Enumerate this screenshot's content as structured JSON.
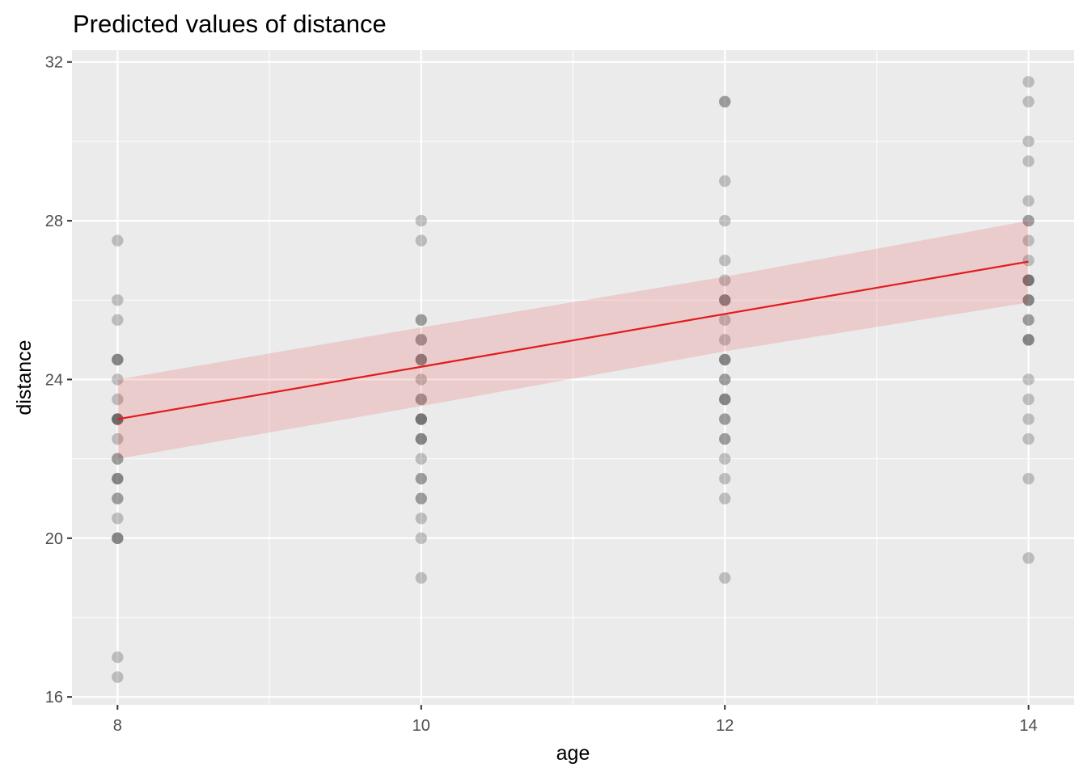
{
  "chart_data": {
    "type": "scatter",
    "title": "Predicted values of distance",
    "xlabel": "age",
    "ylabel": "distance",
    "xlim": [
      7.7,
      14.3
    ],
    "ylim": [
      15.8,
      32.3
    ],
    "x_ticks": [
      8,
      10,
      12,
      14
    ],
    "y_ticks": [
      16,
      20,
      24,
      28,
      32
    ],
    "grid": true,
    "legend": "none",
    "colors": {
      "panel": "#ebebeb",
      "grid": "#ffffff",
      "points": "#595959",
      "line": "#e41a1c",
      "ribbon": "#e41a1c",
      "tick_text": "#4d4d4d",
      "tick_mark": "#333333"
    },
    "series": [
      {
        "type": "points",
        "x": [
          8,
          8,
          8,
          8,
          8,
          8,
          8,
          8,
          8,
          8,
          8,
          8,
          8,
          8,
          8,
          8,
          8,
          8,
          8,
          8,
          8,
          8,
          8,
          8,
          8,
          8,
          8,
          10,
          10,
          10,
          10,
          10,
          10,
          10,
          10,
          10,
          10,
          10,
          10,
          10,
          10,
          10,
          10,
          10,
          10,
          10,
          10,
          10,
          10,
          10,
          10,
          10,
          10,
          10,
          12,
          12,
          12,
          12,
          12,
          12,
          12,
          12,
          12,
          12,
          12,
          12,
          12,
          12,
          12,
          12,
          12,
          12,
          12,
          12,
          12,
          12,
          12,
          12,
          12,
          12,
          12,
          14,
          14,
          14,
          14,
          14,
          14,
          14,
          14,
          14,
          14,
          14,
          14,
          14,
          14,
          14,
          14,
          14,
          14,
          14,
          14,
          14,
          14,
          14,
          14,
          14,
          14,
          14
        ],
        "y": [
          27.5,
          26,
          25.5,
          24.5,
          24.5,
          24,
          23.5,
          23,
          23,
          23,
          23,
          22.5,
          22,
          22,
          21.5,
          21.5,
          21.5,
          21,
          21,
          20.5,
          20,
          20,
          20,
          17,
          16.5,
          24.5,
          23,
          28,
          27.5,
          25.5,
          25.5,
          25,
          25,
          24.5,
          24.5,
          24.5,
          24,
          23.5,
          23.5,
          23,
          23,
          23,
          22.5,
          22.5,
          22.5,
          22,
          21.5,
          21.5,
          21,
          21,
          20.5,
          20,
          19,
          23,
          31,
          31,
          29,
          28,
          27,
          26.5,
          26,
          26,
          25.5,
          25,
          24.5,
          24.5,
          24.5,
          24,
          24,
          23.5,
          23.5,
          23.5,
          23,
          23,
          22.5,
          22.5,
          22,
          21.5,
          21,
          19,
          26,
          31.5,
          31,
          30,
          29.5,
          28.5,
          28,
          28,
          27.5,
          27,
          26.5,
          26.5,
          26.5,
          26,
          26,
          26,
          25.5,
          25.5,
          25,
          25,
          25,
          24,
          23.5,
          23,
          22.5,
          21.5,
          19.5,
          26.5
        ]
      },
      {
        "type": "line",
        "x": [
          8,
          10,
          12,
          14
        ],
        "y": [
          23.0,
          24.32,
          25.65,
          26.97
        ],
        "conf_low": [
          22.0,
          23.33,
          24.71,
          25.94
        ],
        "conf_high": [
          24.0,
          25.31,
          26.59,
          28.0
        ]
      }
    ]
  }
}
